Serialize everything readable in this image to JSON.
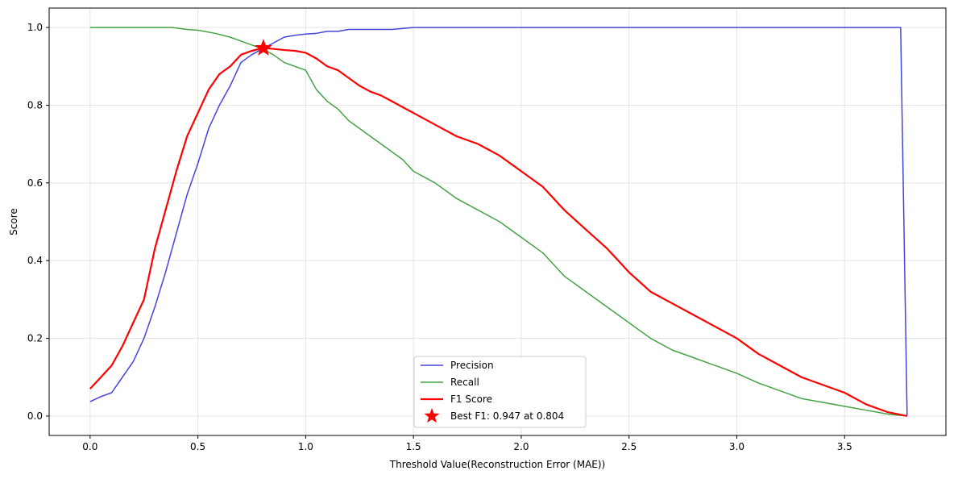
{
  "chart_data": {
    "type": "line",
    "xlabel": "Threshold Value(Reconstruction Error (MAE))",
    "ylabel": "Score",
    "xlim": [
      -0.19,
      3.97
    ],
    "ylim": [
      -0.05,
      1.05
    ],
    "xticks": [
      0.0,
      0.5,
      1.0,
      1.5,
      2.0,
      2.5,
      3.0,
      3.5
    ],
    "xtick_labels": [
      "0.0",
      "0.5",
      "1.0",
      "1.5",
      "2.0",
      "2.5",
      "3.0",
      "3.5"
    ],
    "yticks": [
      0.0,
      0.2,
      0.4,
      0.6,
      0.8,
      1.0
    ],
    "ytick_labels": [
      "0.0",
      "0.2",
      "0.4",
      "0.6",
      "0.8",
      "1.0"
    ],
    "grid": true,
    "legend_position": "bottom-center",
    "series": [
      {
        "name": "Precision",
        "color": "#4444dd",
        "x": [
          0.0,
          0.05,
          0.1,
          0.15,
          0.2,
          0.25,
          0.3,
          0.35,
          0.4,
          0.45,
          0.5,
          0.55,
          0.6,
          0.65,
          0.7,
          0.75,
          0.8,
          0.85,
          0.9,
          0.95,
          1.0,
          1.05,
          1.1,
          1.15,
          1.2,
          1.3,
          1.4,
          1.5,
          2.0,
          2.5,
          3.0,
          3.5,
          3.76,
          3.79
        ],
        "y": [
          0.037,
          0.05,
          0.06,
          0.1,
          0.14,
          0.2,
          0.28,
          0.37,
          0.47,
          0.57,
          0.65,
          0.74,
          0.8,
          0.85,
          0.91,
          0.93,
          0.945,
          0.96,
          0.975,
          0.98,
          0.983,
          0.985,
          0.99,
          0.99,
          0.995,
          0.995,
          0.995,
          1.0,
          1.0,
          1.0,
          1.0,
          1.0,
          1.0,
          0.0
        ]
      },
      {
        "name": "Recall",
        "color": "#44a244",
        "x": [
          0.0,
          0.1,
          0.2,
          0.3,
          0.38,
          0.45,
          0.5,
          0.58,
          0.65,
          0.7,
          0.75,
          0.8,
          0.85,
          0.9,
          0.95,
          1.0,
          1.05,
          1.1,
          1.15,
          1.2,
          1.25,
          1.3,
          1.35,
          1.4,
          1.45,
          1.5,
          1.6,
          1.7,
          1.8,
          1.9,
          2.0,
          2.1,
          2.2,
          2.3,
          2.4,
          2.5,
          2.6,
          2.7,
          2.8,
          2.9,
          3.0,
          3.1,
          3.2,
          3.3,
          3.4,
          3.5,
          3.6,
          3.7,
          3.79
        ],
        "y": [
          1.0,
          1.0,
          1.0,
          1.0,
          1.0,
          0.995,
          0.993,
          0.985,
          0.975,
          0.965,
          0.955,
          0.945,
          0.93,
          0.91,
          0.9,
          0.89,
          0.84,
          0.81,
          0.79,
          0.76,
          0.74,
          0.72,
          0.7,
          0.68,
          0.66,
          0.63,
          0.6,
          0.56,
          0.53,
          0.5,
          0.46,
          0.42,
          0.36,
          0.32,
          0.28,
          0.24,
          0.2,
          0.17,
          0.15,
          0.13,
          0.11,
          0.085,
          0.065,
          0.045,
          0.035,
          0.025,
          0.015,
          0.005,
          0.0
        ]
      },
      {
        "name": "F1 Score",
        "color": "#ff0000",
        "x": [
          0.0,
          0.05,
          0.1,
          0.15,
          0.2,
          0.25,
          0.3,
          0.35,
          0.4,
          0.45,
          0.5,
          0.55,
          0.6,
          0.65,
          0.7,
          0.75,
          0.8,
          0.85,
          0.9,
          0.95,
          1.0,
          1.05,
          1.1,
          1.15,
          1.2,
          1.25,
          1.3,
          1.35,
          1.4,
          1.45,
          1.5,
          1.6,
          1.7,
          1.8,
          1.9,
          2.0,
          2.1,
          2.2,
          2.3,
          2.4,
          2.5,
          2.6,
          2.7,
          2.8,
          2.9,
          3.0,
          3.1,
          3.2,
          3.3,
          3.4,
          3.5,
          3.6,
          3.7,
          3.79
        ],
        "y": [
          0.07,
          0.1,
          0.13,
          0.18,
          0.24,
          0.3,
          0.43,
          0.53,
          0.63,
          0.72,
          0.78,
          0.84,
          0.88,
          0.9,
          0.93,
          0.94,
          0.947,
          0.945,
          0.942,
          0.94,
          0.935,
          0.92,
          0.9,
          0.89,
          0.87,
          0.85,
          0.835,
          0.825,
          0.81,
          0.795,
          0.78,
          0.75,
          0.72,
          0.7,
          0.67,
          0.63,
          0.59,
          0.53,
          0.48,
          0.43,
          0.37,
          0.32,
          0.29,
          0.26,
          0.23,
          0.2,
          0.16,
          0.13,
          0.1,
          0.08,
          0.06,
          0.03,
          0.01,
          0.0
        ]
      },
      {
        "name": "Best F1: 0.947 at 0.804",
        "color": "#ff0000",
        "marker": "star",
        "x": [
          0.804
        ],
        "y": [
          0.947
        ]
      }
    ]
  }
}
